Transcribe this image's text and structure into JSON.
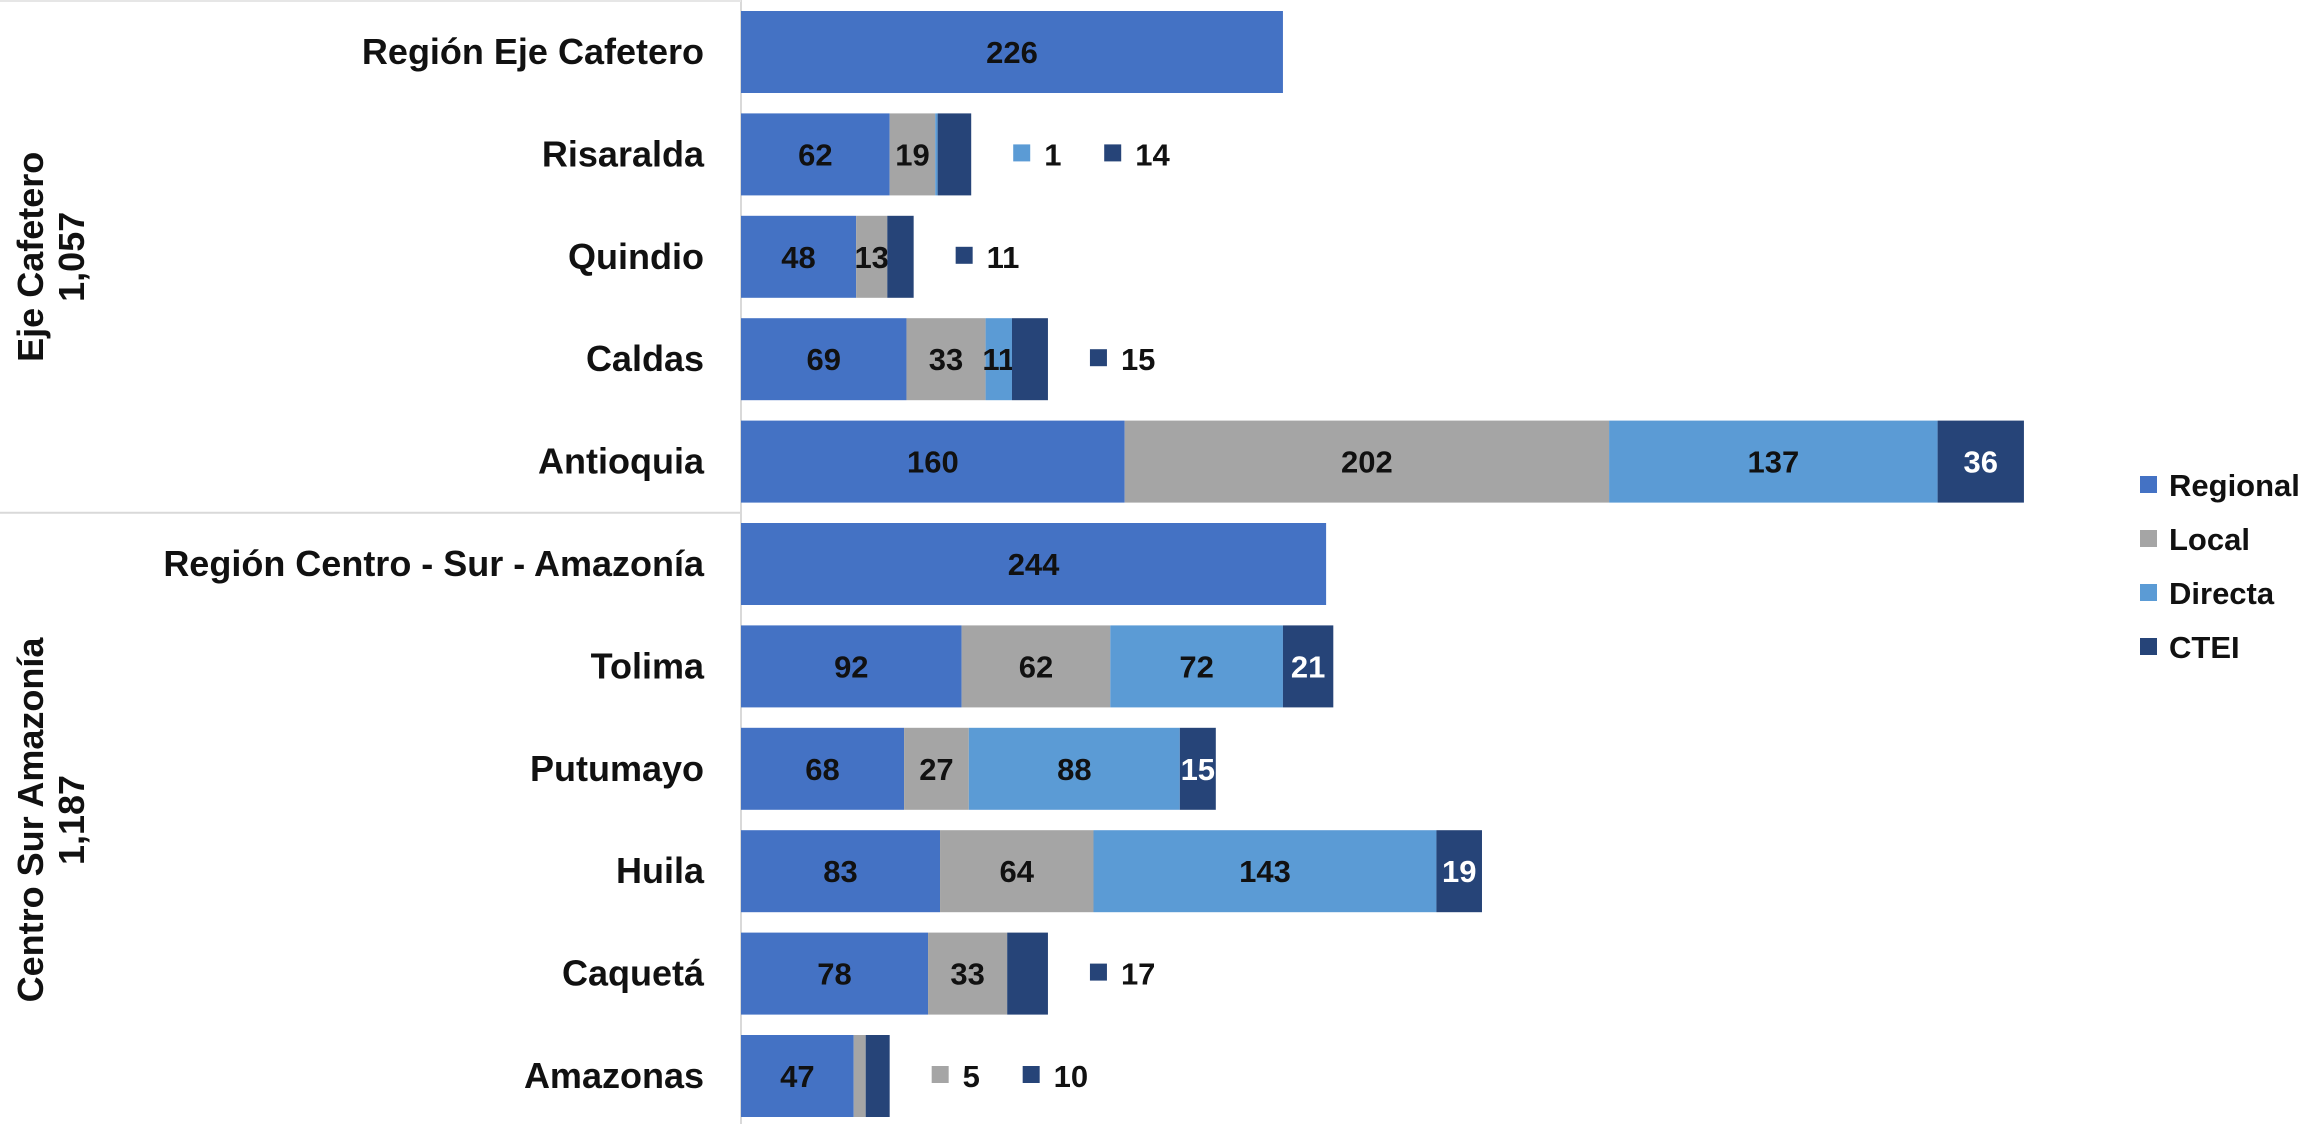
{
  "chart_data": {
    "type": "bar",
    "orientation": "horizontal",
    "stacked": true,
    "legend_position": "right",
    "groups": [
      {
        "name": "Eje Cafetero",
        "total": "1,057",
        "categories": [
          "Región Eje Cafetero",
          "Risaralda",
          "Quindio",
          "Caldas",
          "Antioquia"
        ]
      },
      {
        "name": "Centro Sur Amazonía",
        "total": "1,187",
        "categories": [
          "Región Centro - Sur - Amazonía",
          "Tolima",
          "Putumayo",
          "Huila",
          "Caquetá",
          "Amazonas"
        ]
      }
    ],
    "categories": [
      "Región Eje Cafetero",
      "Risaralda",
      "Quindio",
      "Caldas",
      "Antioquia",
      "Región Centro - Sur - Amazonía",
      "Tolima",
      "Putumayo",
      "Huila",
      "Caquetá",
      "Amazonas"
    ],
    "series": [
      {
        "name": "Regional",
        "color": "#4472C4",
        "label_color": "#111111",
        "values": [
          226,
          62,
          48,
          69,
          160,
          244,
          92,
          68,
          83,
          78,
          47
        ]
      },
      {
        "name": "Local",
        "color": "#A5A5A5",
        "label_color": "#111111",
        "values": [
          0,
          19,
          13,
          33,
          202,
          0,
          62,
          27,
          64,
          33,
          5
        ]
      },
      {
        "name": "Directa",
        "color": "#5B9BD5",
        "label_color": "#111111",
        "values": [
          0,
          1,
          0,
          11,
          137,
          0,
          72,
          88,
          143,
          0,
          0
        ]
      },
      {
        "name": "CTEI",
        "color": "#264478",
        "label_color": "#FFFFFF",
        "values": [
          0,
          14,
          11,
          15,
          36,
          0,
          21,
          15,
          19,
          17,
          10
        ]
      }
    ],
    "inside_labels": [
      [
        true,
        false,
        false,
        false
      ],
      [
        true,
        true,
        false,
        false
      ],
      [
        true,
        true,
        false,
        false
      ],
      [
        true,
        true,
        true,
        false
      ],
      [
        true,
        true,
        true,
        true
      ],
      [
        true,
        false,
        false,
        false
      ],
      [
        true,
        true,
        true,
        true
      ],
      [
        true,
        true,
        true,
        true
      ],
      [
        true,
        true,
        true,
        true
      ],
      [
        true,
        true,
        false,
        false
      ],
      [
        true,
        false,
        false,
        false
      ]
    ],
    "outside_labels": [
      [],
      [
        {
          "series": 2,
          "value": 1
        },
        {
          "series": 3,
          "value": 14
        }
      ],
      [
        {
          "series": 3,
          "value": 11
        }
      ],
      [
        {
          "series": 3,
          "value": 15
        }
      ],
      [],
      [],
      [],
      [],
      [],
      [
        {
          "series": 3,
          "value": 17
        }
      ],
      [
        {
          "series": 1,
          "value": 5
        },
        {
          "series": 3,
          "value": 10
        }
      ]
    ],
    "title": "",
    "xlabel": "",
    "ylabel": ""
  }
}
